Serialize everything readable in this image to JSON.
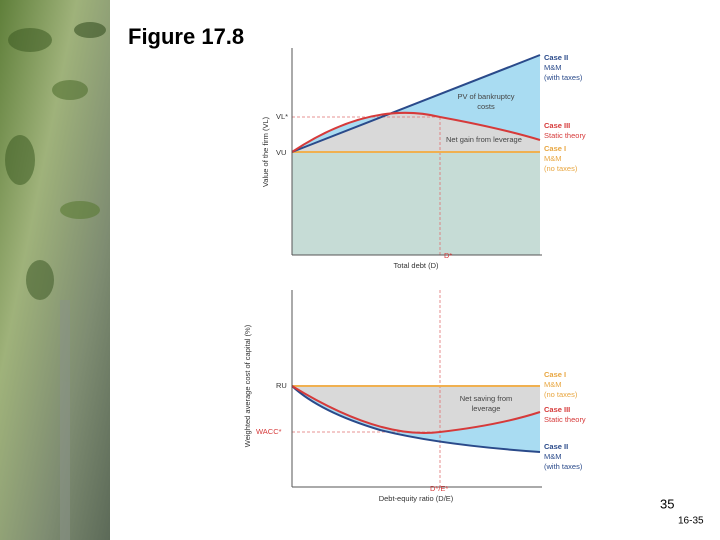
{
  "title": "Figure 17.8",
  "slide_number": "35",
  "page_code": "16-35",
  "top_chart": {
    "y_label": "Value of the firm (VL)",
    "x_label": "Total debt (D)",
    "vl_star": "VL*",
    "vu": "VU",
    "d_star": "D*",
    "bankruptcy_label": [
      "PV of bankruptcy",
      "costs"
    ],
    "gain_label": "Net gain from leverage",
    "case_ii": [
      "Case II",
      "M&M",
      "(with taxes)"
    ],
    "case_iii": [
      "Case III",
      "Static theory"
    ],
    "case_i": [
      "Case I",
      "M&M",
      "(no taxes)"
    ]
  },
  "bottom_chart": {
    "y_label": "Weighted average cost of capital (%)",
    "x_label": "Debt-equity ratio (D/E)",
    "ru": "RU",
    "wacc_star": "WACC*",
    "de_star": "D*/E*",
    "saving_label": [
      "Net saving from",
      "leverage"
    ],
    "case_i": [
      "Case I",
      "M&M",
      "(no taxes)"
    ],
    "case_iii": [
      "Case III",
      "Static theory"
    ],
    "case_ii": [
      "Case II",
      "M&M",
      "(with taxes)"
    ]
  }
}
